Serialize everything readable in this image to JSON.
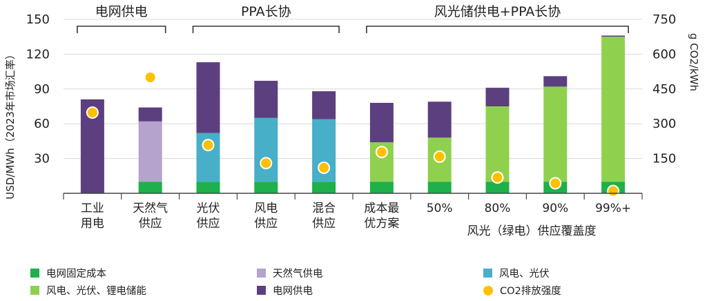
{
  "chart_data": {
    "type": "bar",
    "stacked": true,
    "ylabel": "USD/MWh（2023年市场汇率）",
    "y2label": "g CO2/kWh",
    "ylim": [
      0,
      150
    ],
    "y2lim": [
      0,
      750
    ],
    "yticks": [
      "30",
      "60",
      "90",
      "120",
      "150"
    ],
    "y2ticks": [
      "150",
      "300",
      "450",
      "600",
      "750"
    ],
    "groups": [
      {
        "label": "电网供电",
        "from": 0,
        "to": 1
      },
      {
        "label": "PPA长协",
        "from": 2,
        "to": 4
      },
      {
        "label": "风光储供电+PPA长协",
        "from": 5,
        "to": 9
      }
    ],
    "categories": [
      [
        "工业",
        "用电"
      ],
      [
        "天然气",
        "供应"
      ],
      [
        "光伏",
        "供应"
      ],
      [
        "风电",
        "供应"
      ],
      [
        "混合",
        "供应"
      ],
      [
        "成本最",
        "优方案"
      ],
      [
        "50%"
      ],
      [
        "80%"
      ],
      [
        "90%"
      ],
      [
        "99%+"
      ]
    ],
    "coverage_label": "风光（绿电）供应覆盖度",
    "series": [
      {
        "name": "电网固定成本",
        "color": "#1db04b",
        "values": [
          0,
          10,
          10,
          10,
          10,
          10,
          10,
          10,
          10,
          10
        ]
      },
      {
        "name": "天然气供电",
        "color": "#b4a3cc",
        "values": [
          0,
          52,
          0,
          0,
          0,
          0,
          0,
          0,
          0,
          0
        ]
      },
      {
        "name": "风电、光伏",
        "color": "#48afc8",
        "values": [
          0,
          0,
          42,
          55,
          54,
          0,
          0,
          0,
          0,
          0
        ]
      },
      {
        "name": "风电、光伏、锂电储能",
        "color": "#8fd14f",
        "values": [
          0,
          0,
          0,
          0,
          0,
          34,
          38,
          65,
          82,
          125
        ]
      },
      {
        "name": "电网供电",
        "color": "#5c3f7f",
        "values": [
          81,
          12,
          61,
          32,
          24,
          34,
          31,
          16,
          9,
          1
        ]
      }
    ],
    "co2": {
      "name": "CO2排放强度",
      "color": "#ffc000",
      "values": [
        348,
        500,
        208,
        130,
        110,
        178,
        158,
        68,
        43,
        10
      ]
    }
  }
}
